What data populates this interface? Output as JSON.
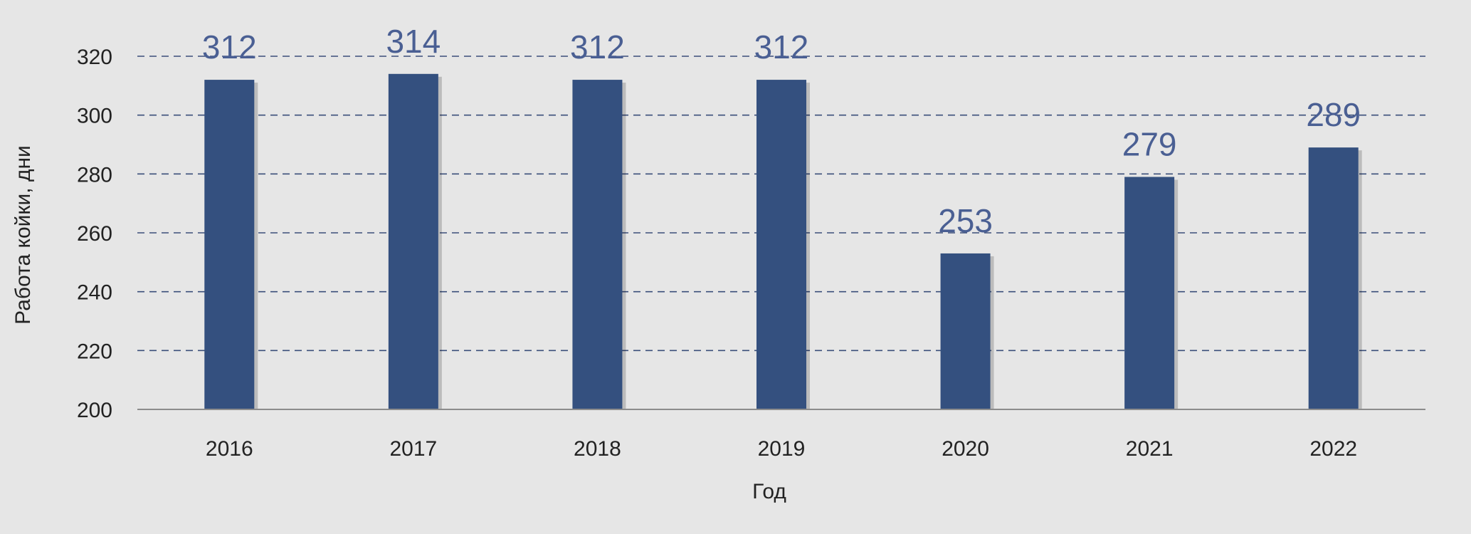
{
  "chart_data": {
    "type": "bar",
    "categories": [
      "2016",
      "2017",
      "2018",
      "2019",
      "2020",
      "2021",
      "2022"
    ],
    "values": [
      312,
      314,
      312,
      312,
      253,
      279,
      289
    ],
    "data_labels": [
      "312",
      "314",
      "312",
      "312",
      "253",
      "279",
      "289"
    ],
    "xlabel": "Год",
    "ylabel": "Работа койки, дни",
    "ylim": [
      200,
      320
    ],
    "yticks": [
      "200",
      "220",
      "240",
      "260",
      "280",
      "300",
      "320"
    ],
    "grid": true,
    "grid_style": "dashed",
    "bar_color": "#34507f",
    "label_color": "#4a5f93",
    "background_color": "#e6e6e6"
  }
}
